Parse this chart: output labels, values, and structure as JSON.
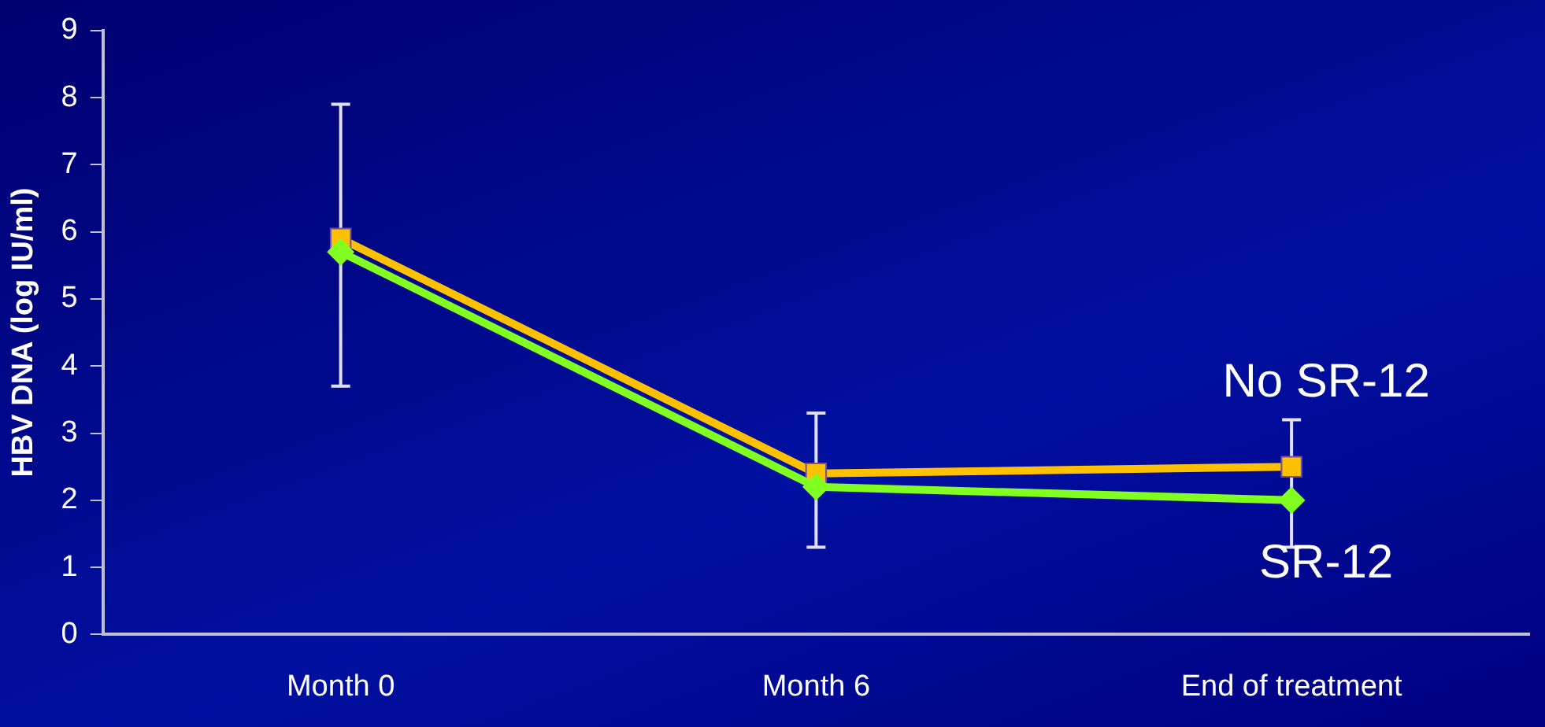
{
  "chart_data": {
    "type": "line",
    "ylabel": "HBV DNA (log IU/ml)",
    "categories": [
      "Month 0",
      "Month 6",
      "End of treatment"
    ],
    "ylim": [
      0,
      9
    ],
    "yticks": [
      0,
      1,
      2,
      3,
      4,
      5,
      6,
      7,
      8,
      9
    ],
    "grid": false,
    "legend": false,
    "series": [
      {
        "name": "SR-12",
        "color": "#80ff20",
        "marker": "diamond",
        "values": [
          5.7,
          2.2,
          2.0
        ]
      },
      {
        "name": "No SR-12",
        "color": "#ffc000",
        "marker": "square",
        "values": [
          5.9,
          2.4,
          2.5
        ],
        "errors": [
          [
            3.7,
            7.9
          ],
          [
            1.3,
            3.3
          ],
          [
            1.3,
            3.2
          ]
        ]
      }
    ]
  }
}
